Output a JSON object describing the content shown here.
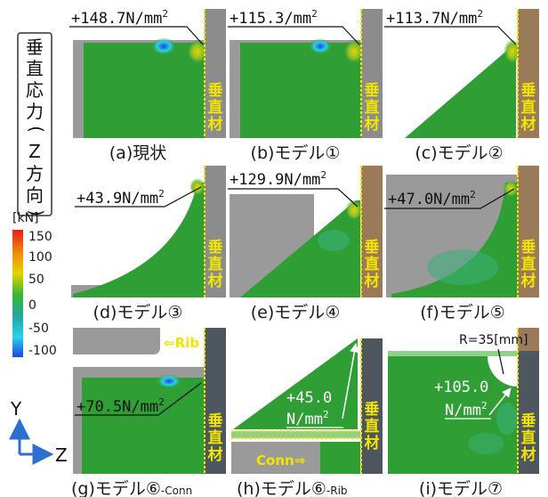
{
  "title_chars": [
    "垂",
    "直",
    "応",
    "力",
    "(",
    "Z",
    "方",
    "向",
    ")"
  ],
  "legend": {
    "unit": "[kN]",
    "ticks": [
      "150",
      "100",
      "50",
      "0",
      "-50",
      "-100"
    ],
    "colors": [
      "#e51e10",
      "#f08a10",
      "#e8d400",
      "#3db82e",
      "#1fa7a3",
      "#2ad3e8",
      "#1a49e0"
    ]
  },
  "column_label": [
    "垂",
    "直",
    "材"
  ],
  "colors": {
    "green": "#2f9e35",
    "grey": "#9a9a9a",
    "column_brown": "#9b7a5a",
    "column_grey": "#8c8c8c",
    "column_dark": "#4e5660",
    "dashed": "#f2e600"
  },
  "panels": {
    "a": {
      "caption": "(a)現状",
      "value": "+148.7N/mm",
      "sup": "2"
    },
    "b": {
      "caption": "(b)モデル①",
      "value": "+115.3/mm",
      "sup": "2"
    },
    "c": {
      "caption": "(c)モデル②",
      "value": "+113.7N/mm",
      "sup": "2"
    },
    "d": {
      "caption": "(d)モデル③",
      "value": "+43.9N/mm",
      "sup": "2"
    },
    "e": {
      "caption": "(e)モデル④",
      "value": "+129.9N/mm",
      "sup": "2"
    },
    "f": {
      "caption": "(f)モデル⑤",
      "value": "+47.0N/mm",
      "sup": "2"
    },
    "g": {
      "caption": "(g)モデル⑥",
      "caption_sub": "-Conn",
      "value": "+70.5N/mm",
      "sup": "2",
      "tag": "⇐Rib"
    },
    "h": {
      "caption": "(h)モデル⑥",
      "caption_sub": "-Rib",
      "value_line1": "+45.0",
      "value_line2": "N/mm",
      "sup": "2",
      "tag": "Conn⇒"
    },
    "i": {
      "caption": "(i)モデル⑦",
      "radius": "R=35[mm]",
      "value_line1": "+105.0",
      "value_line2": "N/mm",
      "sup": "2"
    }
  },
  "axes": {
    "y": "Y",
    "z": "Z"
  }
}
